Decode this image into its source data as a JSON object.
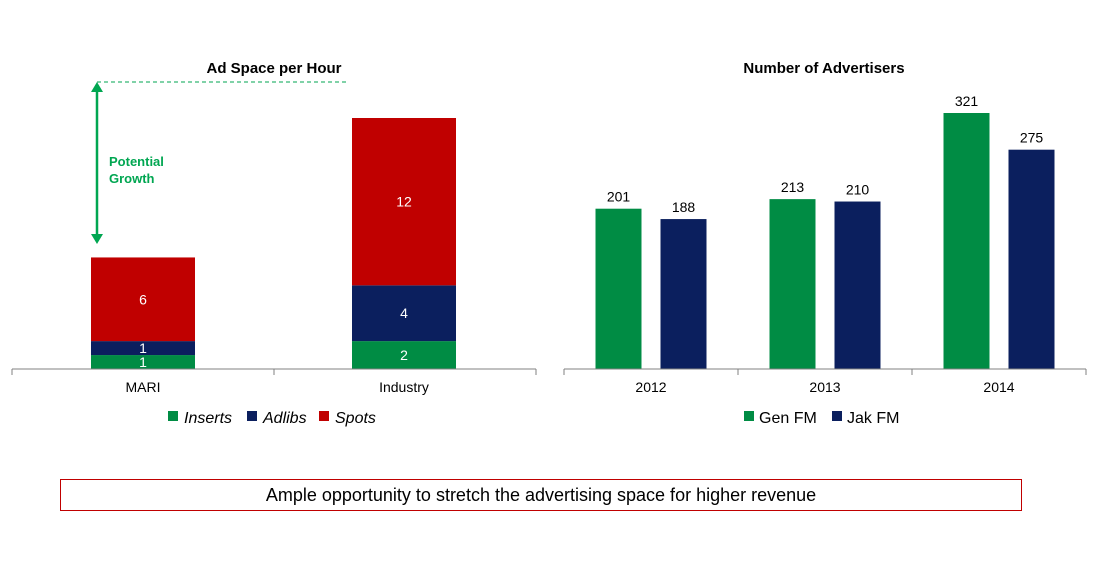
{
  "colors": {
    "green": "#008C44",
    "navy": "#0B1F5E",
    "red": "#C00000",
    "annotation": "#00A651",
    "text": "#000000"
  },
  "chart_data": [
    {
      "type": "bar",
      "stacked": true,
      "title": "Ad Space per Hour",
      "categories": [
        "MARI",
        "Industry"
      ],
      "series": [
        {
          "name": "Inserts",
          "color": "#008C44",
          "values": [
            1,
            2
          ]
        },
        {
          "name": "Adlibs",
          "color": "#0B1F5E",
          "values": [
            1,
            4
          ]
        },
        {
          "name": "Spots",
          "color": "#C00000",
          "values": [
            6,
            12
          ]
        }
      ],
      "ylim": [
        0,
        18
      ],
      "legend_position": "bottom",
      "annotation": {
        "line1": "Potential",
        "line2": "Growth"
      }
    },
    {
      "type": "bar",
      "stacked": false,
      "title": "Number of Advertisers",
      "categories": [
        "2012",
        "2013",
        "2014"
      ],
      "series": [
        {
          "name": "Gen FM",
          "color": "#008C44",
          "values": [
            201,
            213,
            321
          ]
        },
        {
          "name": "Jak FM",
          "color": "#0B1F5E",
          "values": [
            188,
            210,
            275
          ]
        }
      ],
      "ylim": [
        0,
        321
      ],
      "legend_position": "bottom"
    }
  ],
  "callout": {
    "text": "Ample opportunity to stretch the advertising space for higher revenue"
  }
}
